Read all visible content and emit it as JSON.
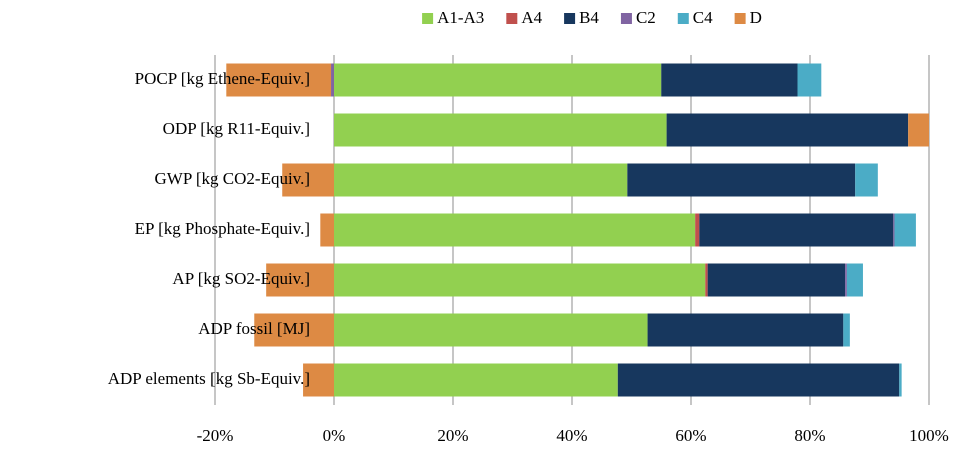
{
  "chart_data": {
    "type": "stacked-barh",
    "categories": [
      "POCP [kg Ethene-Equiv.]",
      "ODP [kg R11-Equiv.]",
      "GWP [kg CO2-Equiv.]",
      "EP [kg Phosphate-Equiv.]",
      "AP [kg SO2-Equiv.]",
      "ADP fossil [MJ]",
      "ADP elements [kg Sb-Equiv.]"
    ],
    "series": [
      {
        "name": "A1-A3",
        "color": "#92d050",
        "values": [
          55.0,
          55.9,
          49.3,
          60.7,
          62.4,
          52.7,
          47.7
        ]
      },
      {
        "name": "A4",
        "color": "#c0504d",
        "values": [
          0,
          0,
          0,
          0.7,
          0.4,
          0,
          0
        ]
      },
      {
        "name": "B4",
        "color": "#17375e",
        "values": [
          22.9,
          40.6,
          38.3,
          32.6,
          23.1,
          32.9,
          47.3
        ]
      },
      {
        "name": "C2",
        "color": "#8064a2",
        "values": [
          -0.5,
          0,
          0,
          0.2,
          0.3,
          0,
          0
        ]
      },
      {
        "name": "C4",
        "color": "#4bacc6",
        "values": [
          4.0,
          0,
          3.8,
          3.6,
          2.7,
          1.1,
          0.4
        ]
      },
      {
        "name": "D",
        "color": "#dd8a44",
        "values": [
          -17.6,
          3.5,
          -8.7,
          -2.3,
          -11.4,
          -13.4,
          -5.2
        ]
      }
    ],
    "xlim": [
      -20,
      100
    ],
    "xticks": [
      {
        "value": -20,
        "label": "-20%"
      },
      {
        "value": 0,
        "label": "0%"
      },
      {
        "value": 20,
        "label": "20%"
      },
      {
        "value": 40,
        "label": "40%"
      },
      {
        "value": 60,
        "label": "60%"
      },
      {
        "value": 80,
        "label": "80%"
      },
      {
        "value": 100,
        "label": "100%"
      }
    ],
    "grid": true,
    "legend": "top"
  }
}
